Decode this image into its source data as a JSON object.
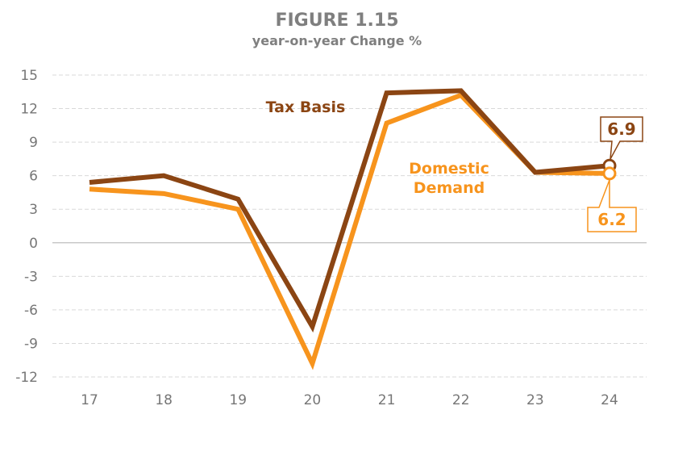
{
  "chart_data": {
    "type": "line",
    "title": "FIGURE 1.15",
    "subtitle": "year-on-year Change %",
    "xlabel": "",
    "ylabel": "",
    "categories": [
      "17",
      "18",
      "19",
      "20",
      "21",
      "22",
      "23",
      "24"
    ],
    "yticks": [
      "15",
      "12",
      "9",
      "6",
      "3",
      "0",
      "-3",
      "-6",
      "-9",
      "-12"
    ],
    "ylim": [
      -12,
      15
    ],
    "ystep": 3,
    "grid": true,
    "legend": "inline-labels",
    "series": [
      {
        "name": "Tax Basis",
        "label_lines": [
          "Tax Basis"
        ],
        "color": "#8B4513",
        "values": [
          5.4,
          6.0,
          3.9,
          -7.5,
          13.4,
          13.6,
          6.3,
          6.9
        ],
        "end_label": "6.9"
      },
      {
        "name": "Domestic Demand",
        "label_lines": [
          "Domestic",
          "Demand"
        ],
        "color": "#F7941D",
        "values": [
          4.8,
          4.4,
          3.0,
          -10.8,
          10.7,
          13.2,
          6.3,
          6.2
        ],
        "end_label": "6.2"
      }
    ]
  }
}
